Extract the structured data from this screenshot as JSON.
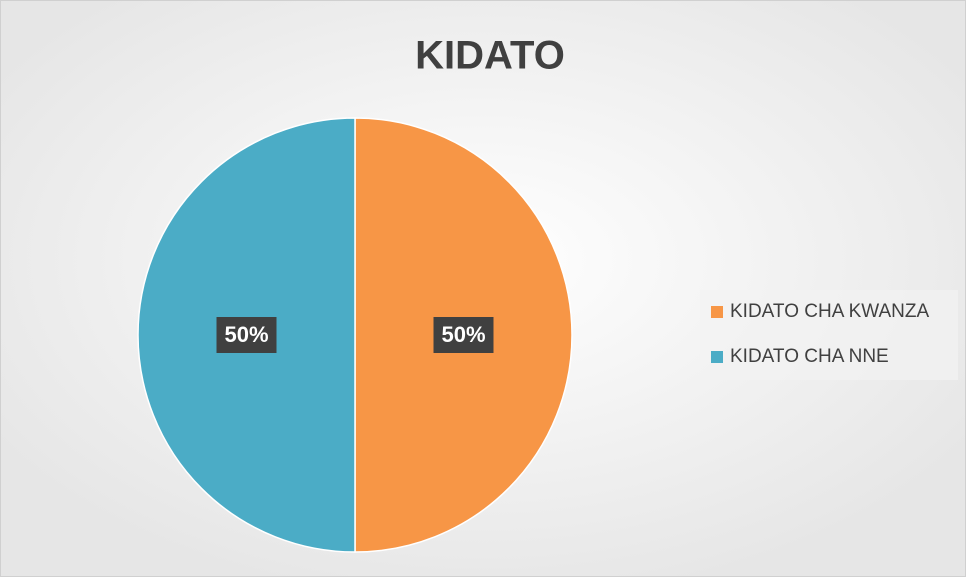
{
  "chart_data": {
    "type": "pie",
    "title": "KIDATO",
    "categories": [
      "KIDATO CHA KWANZA",
      "KIDATO CHA NNE"
    ],
    "values": [
      50,
      50
    ],
    "value_labels": [
      "50%",
      "50%"
    ],
    "colors": [
      "#F79646",
      "#4BACC6"
    ],
    "legend": "right"
  }
}
